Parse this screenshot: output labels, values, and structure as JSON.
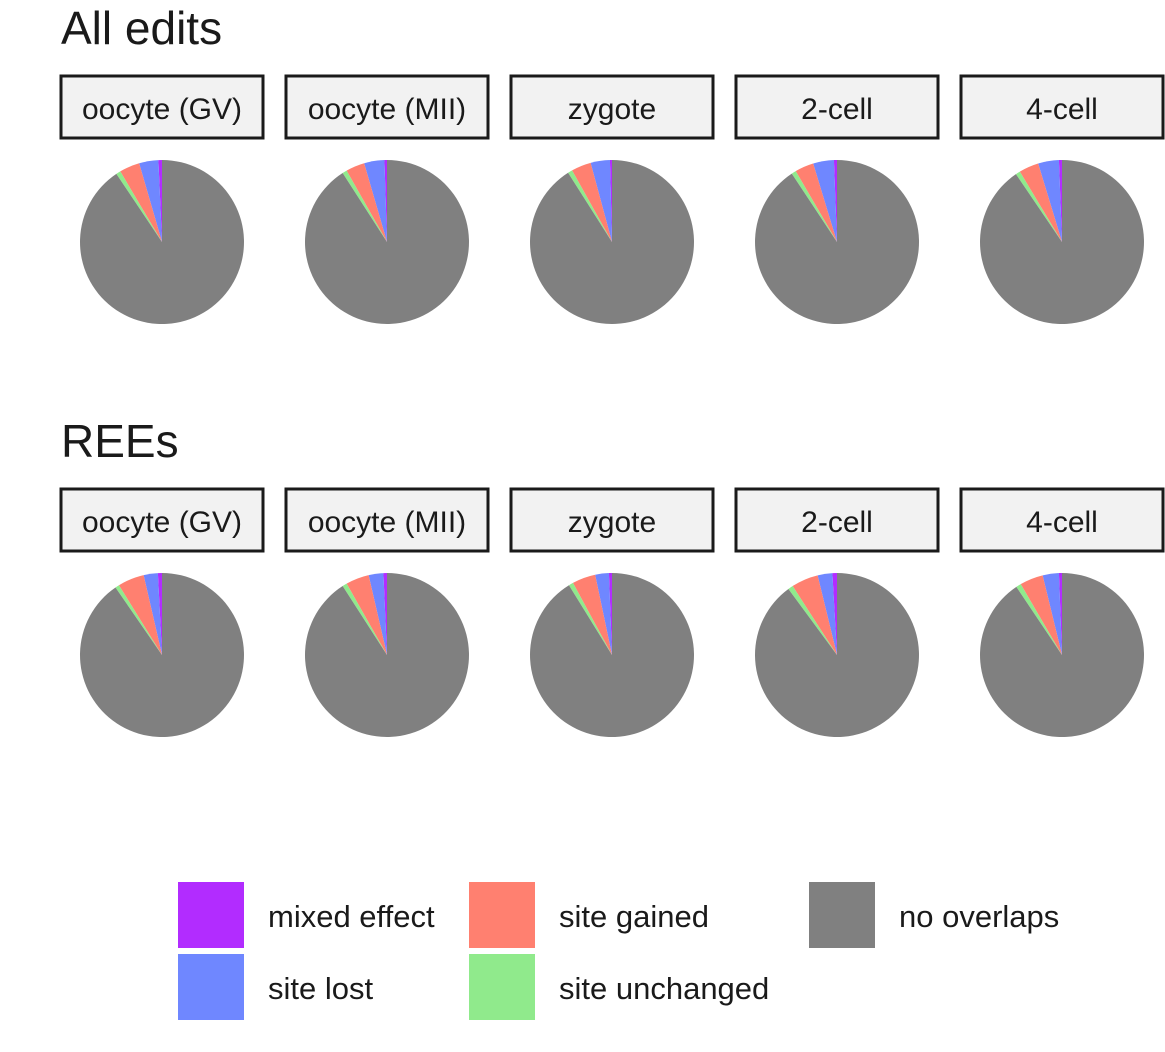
{
  "chart_data": {
    "type": "pie",
    "legend": {
      "position": "bottom",
      "entries": [
        {
          "label": "mixed effect",
          "color": "#b22cff"
        },
        {
          "label": "site gained",
          "color": "#ff8070"
        },
        {
          "label": "no overlaps",
          "color": "#808080"
        },
        {
          "label": "site lost",
          "color": "#6f87ff"
        },
        {
          "label": "site unchanged",
          "color": "#90ea8c"
        }
      ]
    },
    "category_order": [
      "mixed effect",
      "site lost",
      "site gained",
      "site unchanged",
      "no overlaps"
    ],
    "colors": {
      "mixed effect": "#b22cff",
      "site lost": "#6f87ff",
      "site gained": "#ff8070",
      "site unchanged": "#90ea8c",
      "no overlaps": "#808080"
    },
    "panels": [
      {
        "title": "All edits",
        "facets": [
          {
            "label": "oocyte (GV)",
            "values": {
              "mixed effect": 0.7,
              "site lost": 3.8,
              "site gained": 4.0,
              "site unchanged": 0.9,
              "no overlaps": 90.6
            }
          },
          {
            "label": "oocyte (MII)",
            "values": {
              "mixed effect": 0.5,
              "site lost": 4.0,
              "site gained": 3.7,
              "site unchanged": 0.9,
              "no overlaps": 90.9
            }
          },
          {
            "label": "zygote",
            "values": {
              "mixed effect": 0.4,
              "site lost": 3.8,
              "site gained": 3.9,
              "site unchanged": 0.9,
              "no overlaps": 91.0
            }
          },
          {
            "label": "2-cell",
            "values": {
              "mixed effect": 0.6,
              "site lost": 4.1,
              "site gained": 3.7,
              "site unchanged": 0.9,
              "no overlaps": 90.7
            }
          },
          {
            "label": "4-cell",
            "values": {
              "mixed effect": 0.6,
              "site lost": 4.1,
              "site gained": 3.9,
              "site unchanged": 0.9,
              "no overlaps": 90.5
            }
          }
        ]
      },
      {
        "title": "REEs",
        "facets": [
          {
            "label": "oocyte (GV)",
            "values": {
              "mixed effect": 0.8,
              "site lost": 2.8,
              "site gained": 5.2,
              "site unchanged": 0.8,
              "no overlaps": 90.4
            }
          },
          {
            "label": "oocyte (MII)",
            "values": {
              "mixed effect": 0.7,
              "site lost": 2.9,
              "site gained": 4.6,
              "site unchanged": 0.9,
              "no overlaps": 90.9
            }
          },
          {
            "label": "zygote",
            "values": {
              "mixed effect": 0.6,
              "site lost": 2.7,
              "site gained": 4.6,
              "site unchanged": 0.9,
              "no overlaps": 91.2
            }
          },
          {
            "label": "2-cell",
            "values": {
              "mixed effect": 0.9,
              "site lost": 2.9,
              "site gained": 5.3,
              "site unchanged": 1.0,
              "no overlaps": 89.9
            }
          },
          {
            "label": "4-cell",
            "values": {
              "mixed effect": 0.6,
              "site lost": 3.2,
              "site gained": 4.6,
              "site unchanged": 1.0,
              "no overlaps": 90.6
            }
          }
        ]
      }
    ]
  }
}
